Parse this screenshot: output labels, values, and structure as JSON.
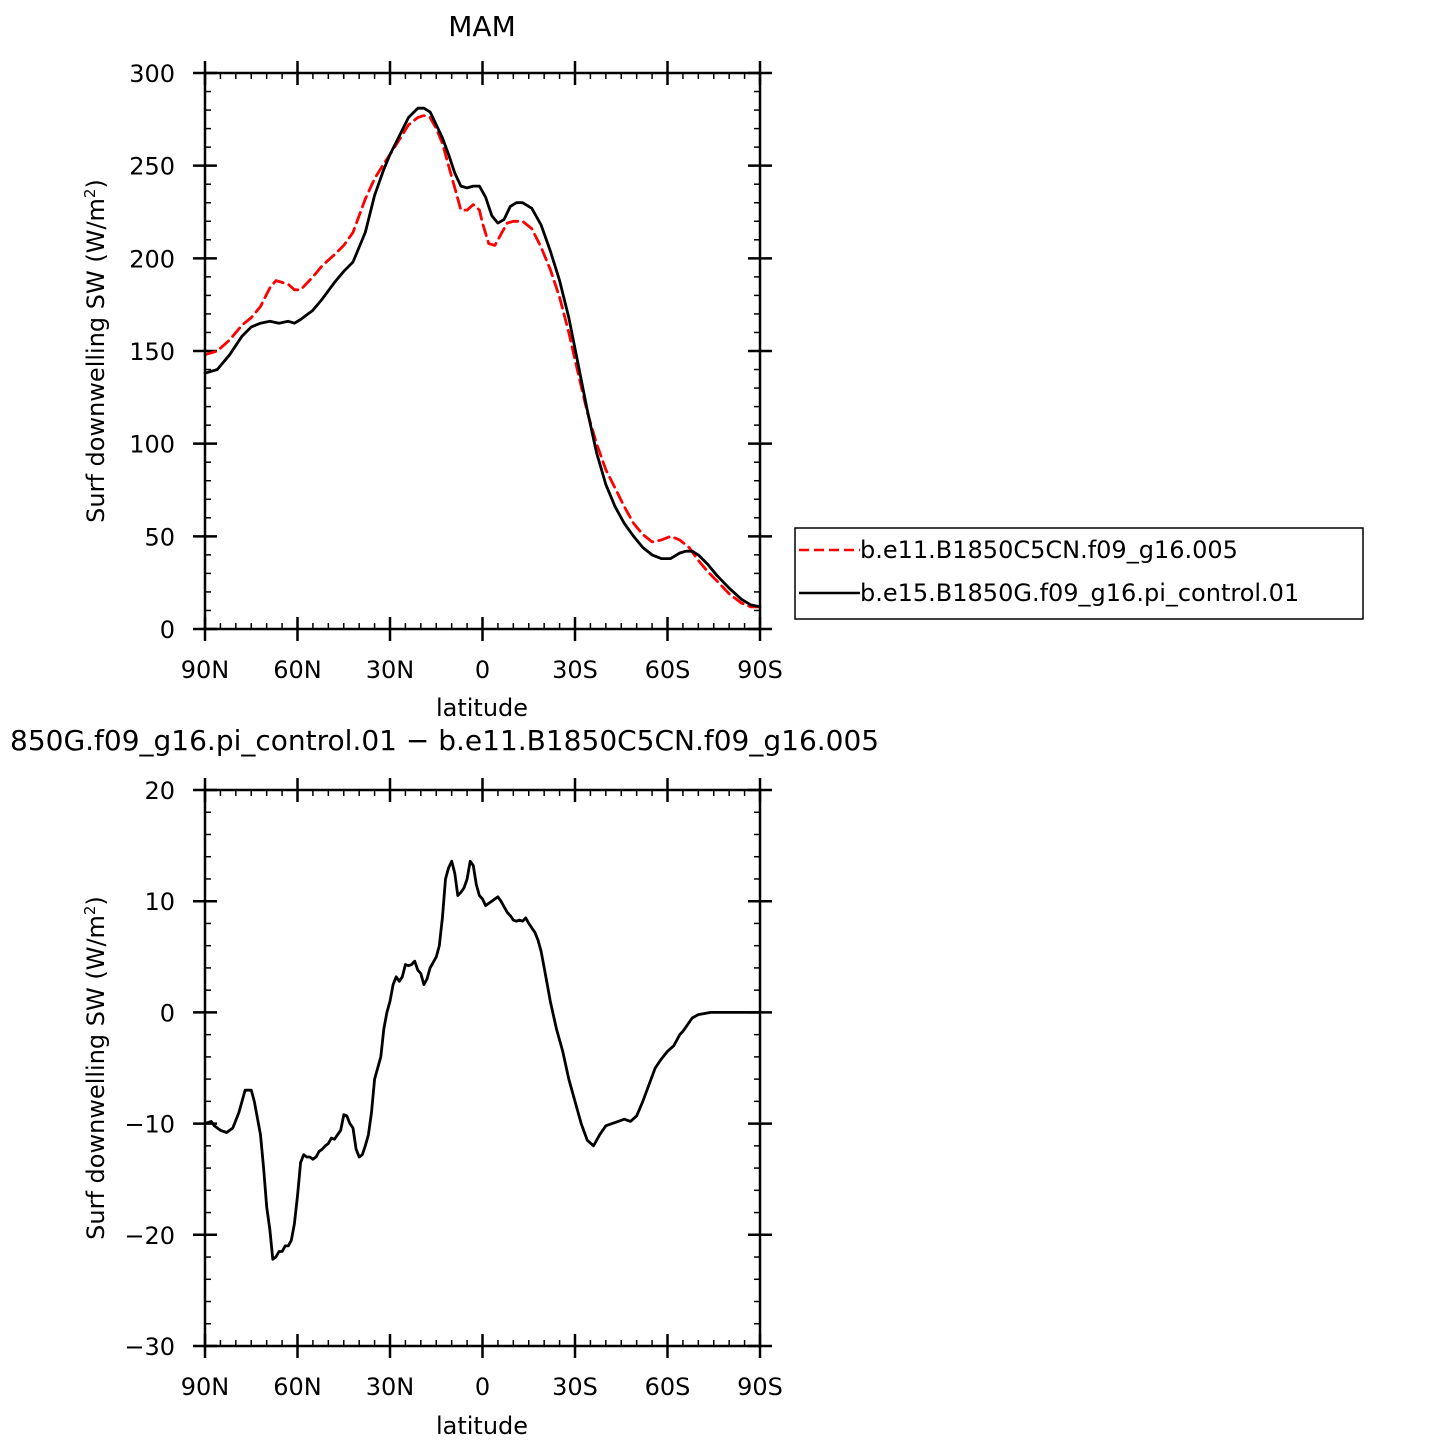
{
  "chart_data": [
    {
      "type": "line",
      "title": "MAM",
      "xlabel": "latitude",
      "ylabel": "Surf downwelling SW (W/m",
      "ylabel_sup": "2",
      "ylabel_tail": ")",
      "xlim": [
        90,
        -90
      ],
      "ylim": [
        0,
        300
      ],
      "x_ticks": [
        {
          "value": 90,
          "label": "90N"
        },
        {
          "value": 60,
          "label": "60N"
        },
        {
          "value": 30,
          "label": "30N"
        },
        {
          "value": 0,
          "label": "0"
        },
        {
          "value": -30,
          "label": "30S"
        },
        {
          "value": -60,
          "label": "60S"
        },
        {
          "value": -90,
          "label": "90S"
        }
      ],
      "y_ticks": [
        {
          "value": 0,
          "label": "0"
        },
        {
          "value": 50,
          "label": "50"
        },
        {
          "value": 100,
          "label": "100"
        },
        {
          "value": 150,
          "label": "150"
        },
        {
          "value": 200,
          "label": "200"
        },
        {
          "value": 250,
          "label": "250"
        },
        {
          "value": 300,
          "label": "300"
        }
      ],
      "legend": "right",
      "series": [
        {
          "name": "b.e11.B1850C5CN.f09_g16.005",
          "color": "#ff0000",
          "dash": "dashed",
          "x": [
            90,
            86,
            82,
            78,
            75,
            72,
            69,
            67,
            65,
            63,
            61,
            59,
            55,
            52,
            48,
            45,
            42,
            38,
            35,
            32,
            30,
            27,
            24,
            21,
            19,
            17,
            15,
            13,
            11,
            9,
            7,
            5,
            3,
            1,
            0,
            -2,
            -4,
            -6,
            -8,
            -10,
            -13,
            -16,
            -19,
            -22,
            -25,
            -28,
            -31,
            -34,
            -37,
            -40,
            -43,
            -46,
            -49,
            -52,
            -55,
            -58,
            -61,
            -64,
            -67,
            -70,
            -73,
            -76,
            -80,
            -84,
            -87,
            -90
          ],
          "y": [
            148,
            150,
            156,
            164,
            168,
            174,
            184,
            188,
            187,
            186,
            183,
            183,
            190,
            196,
            202,
            207,
            214,
            232,
            243,
            251,
            256,
            264,
            272,
            276,
            277,
            276,
            270,
            262,
            250,
            238,
            226,
            226,
            229,
            226,
            219,
            208,
            207,
            213,
            219,
            220,
            220,
            216,
            206,
            194,
            179,
            160,
            138,
            117,
            100,
            86,
            76,
            66,
            57,
            51,
            47,
            48,
            50,
            48,
            44,
            37,
            31,
            26,
            19,
            14,
            12,
            12
          ]
        },
        {
          "name": "b.e15.B1850G.f09_g16.pi_control.01",
          "color": "#000000",
          "dash": "solid",
          "x": [
            90,
            86,
            82,
            78,
            75,
            72,
            69,
            66,
            63,
            61,
            59,
            55,
            52,
            48,
            45,
            42,
            38,
            35,
            32,
            30,
            27,
            24,
            21,
            19,
            17,
            15,
            13,
            11,
            9,
            7,
            5,
            3,
            1,
            -1,
            -3,
            -5,
            -7,
            -9,
            -11,
            -13,
            -16,
            -19,
            -22,
            -25,
            -28,
            -31,
            -34,
            -37,
            -40,
            -43,
            -46,
            -49,
            -52,
            -55,
            -58,
            -61,
            -64,
            -66,
            -68,
            -70,
            -73,
            -76,
            -80,
            -84,
            -87,
            -90
          ],
          "y": [
            138,
            140,
            148,
            158,
            163,
            165,
            166,
            165,
            166,
            165,
            167,
            172,
            178,
            187,
            193,
            198,
            214,
            234,
            248,
            256,
            266,
            276,
            281,
            281,
            279,
            272,
            265,
            256,
            246,
            239,
            238,
            239,
            239,
            233,
            223,
            219,
            221,
            228,
            230,
            230,
            227,
            218,
            204,
            188,
            168,
            143,
            118,
            95,
            78,
            66,
            57,
            50,
            44,
            40,
            38,
            38,
            41,
            42,
            42,
            40,
            35,
            29,
            22,
            16,
            13,
            12
          ]
        }
      ]
    },
    {
      "type": "line",
      "title": "850G.f09_g16.pi_control.01 − b.e11.B1850C5CN.f09_g16.005",
      "xlabel": "latitude",
      "ylabel": "Surf downwelling SW (W/m",
      "ylabel_sup": "2",
      "ylabel_tail": ")",
      "xlim": [
        90,
        -90
      ],
      "ylim": [
        -30,
        20
      ],
      "x_ticks": [
        {
          "value": 90,
          "label": "90N"
        },
        {
          "value": 60,
          "label": "60N"
        },
        {
          "value": 30,
          "label": "30N"
        },
        {
          "value": 0,
          "label": "0"
        },
        {
          "value": -30,
          "label": "30S"
        },
        {
          "value": -60,
          "label": "60S"
        },
        {
          "value": -90,
          "label": "90S"
        }
      ],
      "y_ticks": [
        {
          "value": -30,
          "label": "−30"
        },
        {
          "value": -20,
          "label": "−20"
        },
        {
          "value": -10,
          "label": "−10"
        },
        {
          "value": 0,
          "label": "0"
        },
        {
          "value": 10,
          "label": "10"
        },
        {
          "value": 20,
          "label": "20"
        }
      ],
      "series": [
        {
          "color": "#000000",
          "dash": "solid",
          "x": [
            90,
            88,
            87,
            85,
            83,
            81,
            79,
            77,
            75,
            74,
            72,
            71,
            70,
            69,
            68,
            67,
            66,
            65,
            64,
            63,
            62,
            61,
            60,
            59,
            58,
            57,
            56,
            55,
            54,
            53,
            52,
            51,
            50,
            49,
            48,
            47,
            46,
            45,
            44,
            43,
            42,
            41,
            40,
            39,
            38,
            37,
            36,
            35,
            34,
            33,
            32,
            31,
            30,
            29,
            28,
            27,
            26,
            25,
            24,
            23,
            22,
            21,
            20,
            19,
            18,
            17,
            16,
            15,
            14,
            13,
            12,
            11,
            10,
            9,
            8,
            7,
            6,
            5,
            4,
            3,
            2,
            1,
            0,
            -1,
            -2,
            -3,
            -4,
            -5,
            -6,
            -7,
            -8,
            -9,
            -10,
            -11,
            -12,
            -13,
            -14,
            -15,
            -16,
            -17,
            -18,
            -19,
            -20,
            -21,
            -22,
            -24,
            -26,
            -28,
            -30,
            -32,
            -34,
            -36,
            -38,
            -40,
            -42,
            -44,
            -46,
            -48,
            -50,
            -52,
            -54,
            -56,
            -58,
            -60,
            -62,
            -63,
            -64,
            -65,
            -66,
            -67,
            -68,
            -70,
            -72,
            -74,
            -76,
            -78,
            -80,
            -82,
            -84,
            -86,
            -88,
            -90
          ],
          "y": [
            -10,
            -9.8,
            -10.2,
            -10.6,
            -10.8,
            -10.4,
            -9,
            -7,
            -7,
            -8,
            -11,
            -14,
            -17.5,
            -19.5,
            -22.2,
            -22.0,
            -21.5,
            -21.5,
            -21,
            -21,
            -20.5,
            -19,
            -16.5,
            -13.5,
            -12.8,
            -13,
            -13,
            -13.2,
            -13,
            -12.5,
            -12.3,
            -12,
            -11.8,
            -11.3,
            -11.4,
            -11,
            -10.6,
            -9.2,
            -9.3,
            -10,
            -10.4,
            -12.3,
            -13,
            -12.8,
            -12,
            -11,
            -9,
            -6,
            -5,
            -4,
            -1.5,
            0,
            1,
            2.5,
            3.2,
            2.8,
            3.2,
            4.3,
            4.2,
            4.3,
            4.6,
            3.8,
            3.5,
            2.5,
            3.0,
            4.0,
            4.5,
            5.0,
            6.0,
            8.5,
            12,
            13,
            13.6,
            12.5,
            10.5,
            10.8,
            11.2,
            12,
            13.6,
            13.2,
            11.5,
            10.5,
            10.2,
            9.6,
            9.8,
            10.0,
            10.2,
            10.4,
            10.0,
            9.5,
            9.0,
            8.7,
            8.3,
            8.2,
            8.3,
            8.2,
            8.5,
            8.0,
            7.6,
            7.2,
            6.5,
            5.5,
            4.0,
            2.5,
            1.0,
            -1.5,
            -3.5,
            -6,
            -8,
            -10,
            -11.5,
            -12,
            -11,
            -10.2,
            -10,
            -9.8,
            -9.6,
            -9.8,
            -9.3,
            -8,
            -6.5,
            -5,
            -4.2,
            -3.5,
            -3,
            -2.5,
            -2,
            -1.7,
            -1.3,
            -0.9,
            -0.5,
            -0.2,
            -0.1,
            0,
            0,
            0,
            0,
            0,
            0,
            0,
            0,
            0
          ]
        }
      ]
    }
  ]
}
